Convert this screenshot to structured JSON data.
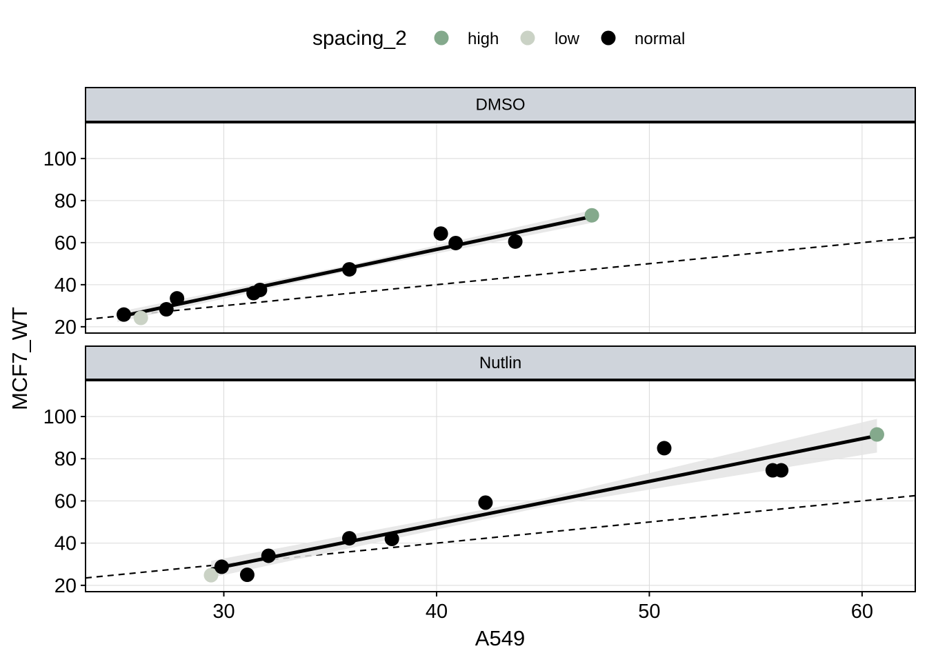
{
  "chart_data": {
    "type": "scatter",
    "xlabel": "A549",
    "ylabel": "MCF7_WT",
    "xlim": [
      23.5,
      62.5
    ],
    "ylim": [
      17,
      117
    ],
    "x_ticks": [
      30,
      40,
      50,
      60
    ],
    "y_ticks": [
      20,
      40,
      60,
      80,
      100
    ],
    "grid": true,
    "legend": {
      "title": "spacing_2",
      "position": "top",
      "items": [
        {
          "label": "high",
          "color": "#84a98c"
        },
        {
          "label": "low",
          "color": "#cad2c5"
        },
        {
          "label": "normal",
          "color": "#000000"
        }
      ]
    },
    "reference_line": {
      "style": "dashed",
      "slope": 1,
      "intercept": 0
    },
    "panels": [
      {
        "strip": "DMSO",
        "points": [
          {
            "x": 25.3,
            "y": 25.8,
            "group": "normal"
          },
          {
            "x": 26.1,
            "y": 24.2,
            "group": "low"
          },
          {
            "x": 27.3,
            "y": 28.3,
            "group": "normal"
          },
          {
            "x": 27.8,
            "y": 33.5,
            "group": "normal"
          },
          {
            "x": 31.4,
            "y": 36.0,
            "group": "normal"
          },
          {
            "x": 31.7,
            "y": 37.5,
            "group": "normal"
          },
          {
            "x": 35.9,
            "y": 47.3,
            "group": "normal"
          },
          {
            "x": 40.2,
            "y": 64.3,
            "group": "normal"
          },
          {
            "x": 40.9,
            "y": 59.8,
            "group": "normal"
          },
          {
            "x": 43.7,
            "y": 60.5,
            "group": "normal"
          },
          {
            "x": 47.3,
            "y": 73.0,
            "group": "high"
          }
        ],
        "fit": {
          "x_start": 25.0,
          "y_start": 24.6,
          "x_end": 47.3,
          "y_end": 72.4,
          "ci_halfwidth": [
            2.4,
            1.4,
            3.0
          ]
        }
      },
      {
        "strip": "Nutlin",
        "points": [
          {
            "x": 29.4,
            "y": 24.8,
            "group": "low"
          },
          {
            "x": 29.9,
            "y": 28.8,
            "group": "normal"
          },
          {
            "x": 31.1,
            "y": 25.0,
            "group": "normal"
          },
          {
            "x": 32.1,
            "y": 34.0,
            "group": "normal"
          },
          {
            "x": 35.9,
            "y": 42.3,
            "group": "normal"
          },
          {
            "x": 37.9,
            "y": 42.0,
            "group": "normal"
          },
          {
            "x": 42.3,
            "y": 59.2,
            "group": "normal"
          },
          {
            "x": 50.7,
            "y": 85.0,
            "group": "normal"
          },
          {
            "x": 55.8,
            "y": 74.5,
            "group": "normal"
          },
          {
            "x": 56.2,
            "y": 74.5,
            "group": "normal"
          },
          {
            "x": 60.7,
            "y": 91.5,
            "group": "high"
          }
        ],
        "fit": {
          "x_start": 29.4,
          "y_start": 27.6,
          "x_end": 60.7,
          "y_end": 90.9,
          "ci_halfwidth": [
            4.0,
            2.0,
            8.0
          ]
        }
      }
    ]
  }
}
